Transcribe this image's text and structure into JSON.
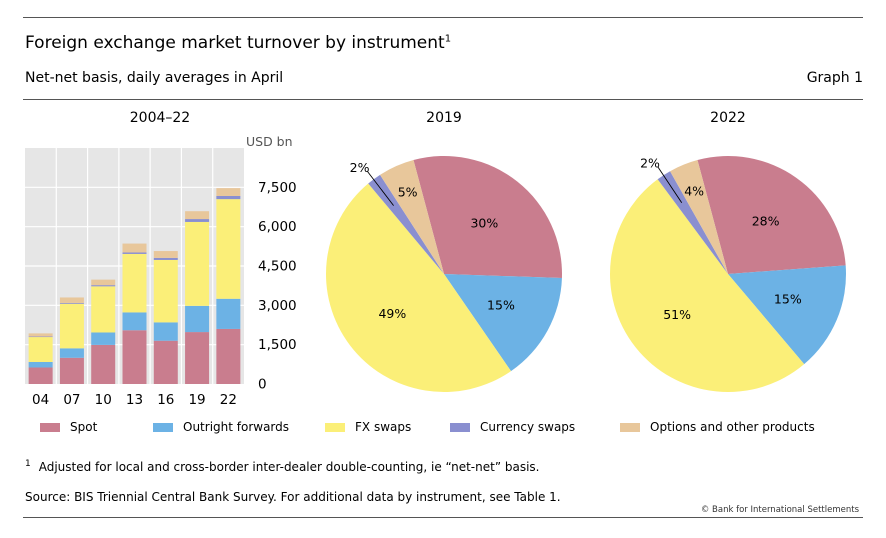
{
  "header": {
    "title": "Foreign exchange market turnover by instrument",
    "title_sup": "1",
    "subtitle": "Net-net basis, daily averages in April",
    "graph_label": "Graph 1"
  },
  "colors": {
    "spot": "#c97d8e",
    "outright": "#6cb2e5",
    "fx_swaps": "#fbef78",
    "currency_swaps": "#8a8fd0",
    "options": "#e8c79b",
    "plot_bg": "#e6e6e6"
  },
  "chart_data": [
    {
      "type": "bar",
      "stacked": true,
      "title": "2004–22",
      "unit_label": "USD bn",
      "categories": [
        "04",
        "07",
        "10",
        "13",
        "16",
        "19",
        "22"
      ],
      "ylim": [
        0,
        9000
      ],
      "yticks": [
        "0",
        "1,500",
        "3,000",
        "4,500",
        "6,000",
        "7,500"
      ],
      "ytick_values": [
        0,
        1500,
        3000,
        4500,
        6000,
        7500
      ],
      "grid": true,
      "series": [
        {
          "name": "Spot",
          "color_key": "spot",
          "values": [
            630,
            1000,
            1490,
            2050,
            1650,
            1980,
            2100
          ]
        },
        {
          "name": "Outright forwards",
          "color_key": "outright",
          "values": [
            210,
            360,
            475,
            680,
            700,
            1000,
            1150
          ]
        },
        {
          "name": "FX swaps",
          "color_key": "fx_swaps",
          "values": [
            950,
            1700,
            1760,
            2230,
            2380,
            3200,
            3800
          ]
        },
        {
          "name": "Currency swaps",
          "color_key": "currency_swaps",
          "values": [
            20,
            30,
            45,
            55,
            80,
            110,
            120
          ]
        },
        {
          "name": "Options and other products",
          "color_key": "options",
          "values": [
            120,
            210,
            210,
            340,
            260,
            300,
            300
          ]
        }
      ]
    },
    {
      "type": "pie",
      "title": "2019",
      "labels": [
        "Spot",
        "Outright forwards",
        "FX swaps",
        "Currency swaps",
        "Options and other products"
      ],
      "values": [
        30,
        15,
        49,
        2,
        5
      ],
      "value_labels": [
        "30%",
        "15%",
        "49%",
        "2%",
        "5%"
      ]
    },
    {
      "type": "pie",
      "title": "2022",
      "labels": [
        "Spot",
        "Outright forwards",
        "FX swaps",
        "Currency swaps",
        "Options and other products"
      ],
      "values": [
        28,
        15,
        51,
        2,
        4
      ],
      "value_labels": [
        "28%",
        "15%",
        "51%",
        "2%",
        "4%"
      ]
    }
  ],
  "legend": [
    {
      "label": "Spot",
      "color_key": "spot"
    },
    {
      "label": "Outright forwards",
      "color_key": "outright"
    },
    {
      "label": "FX swaps",
      "color_key": "fx_swaps"
    },
    {
      "label": "Currency swaps",
      "color_key": "currency_swaps"
    },
    {
      "label": "Options and other products",
      "color_key": "options"
    }
  ],
  "footnote": {
    "marker": "1",
    "text": "Adjusted for local and cross-border inter-dealer double-counting, ie “net-net” basis."
  },
  "source": "Source: BIS Triennial Central Bank Survey. For additional data by instrument, see Table 1.",
  "copyright": "© Bank for International Settlements"
}
